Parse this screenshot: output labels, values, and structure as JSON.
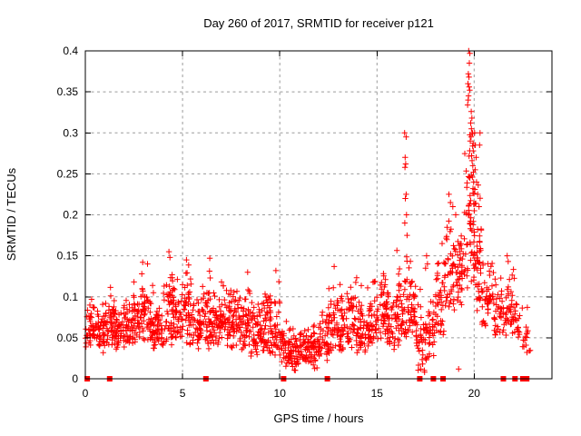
{
  "title": "Day 260 of 2017, SRMTID for receiver p121",
  "colors": {
    "marker": "#ff0000",
    "axis": "#000000",
    "grid": "#9b9b9b",
    "background": "#ffffff",
    "text": "#000000"
  },
  "chart_data": {
    "type": "scatter",
    "title": "Day 260 of 2017, SRMTID for receiver p121",
    "xlabel": "GPS time / hours",
    "ylabel": "SRMTID / TECUs",
    "xlim": [
      0,
      24
    ],
    "ylim": [
      0,
      0.4
    ],
    "xticks": [
      0,
      5,
      10,
      15,
      20
    ],
    "xtick_labels": [
      "0",
      "5",
      "10",
      "15",
      "20"
    ],
    "yticks": [
      0,
      0.05,
      0.1,
      0.15,
      0.2,
      0.25,
      0.3,
      0.35,
      0.4
    ],
    "ytick_labels": [
      "0",
      "0.05",
      "0.1",
      "0.15",
      "0.2",
      "0.25",
      "0.3",
      "0.35",
      "0.4"
    ],
    "grid": true,
    "legend": false,
    "marker": "plus",
    "series_name": "SRMTID",
    "seed": 20170260,
    "bands": [
      [
        0.0,
        0.5,
        42,
        0.035,
        0.1
      ],
      [
        0.5,
        1.0,
        45,
        0.03,
        0.105
      ],
      [
        1.0,
        1.5,
        45,
        0.04,
        0.12
      ],
      [
        1.5,
        2.0,
        45,
        0.035,
        0.095
      ],
      [
        2.0,
        2.5,
        45,
        0.04,
        0.11
      ],
      [
        2.5,
        3.0,
        45,
        0.04,
        0.135
      ],
      [
        3.0,
        3.5,
        45,
        0.04,
        0.14
      ],
      [
        3.5,
        4.0,
        45,
        0.035,
        0.105
      ],
      [
        4.0,
        4.5,
        45,
        0.04,
        0.15
      ],
      [
        4.5,
        5.0,
        45,
        0.04,
        0.125
      ],
      [
        5.0,
        5.5,
        45,
        0.035,
        0.145
      ],
      [
        5.5,
        6.0,
        45,
        0.03,
        0.11
      ],
      [
        6.0,
        6.5,
        45,
        0.035,
        0.145
      ],
      [
        6.5,
        7.0,
        45,
        0.035,
        0.11
      ],
      [
        7.0,
        7.5,
        45,
        0.04,
        0.125
      ],
      [
        7.5,
        8.0,
        45,
        0.035,
        0.12
      ],
      [
        8.0,
        8.5,
        45,
        0.03,
        0.125
      ],
      [
        8.5,
        9.0,
        45,
        0.025,
        0.1
      ],
      [
        9.0,
        9.5,
        45,
        0.03,
        0.115
      ],
      [
        9.5,
        10.0,
        45,
        0.02,
        0.13
      ],
      [
        10.0,
        10.5,
        42,
        0.015,
        0.08
      ],
      [
        10.5,
        11.0,
        42,
        0.01,
        0.07
      ],
      [
        11.0,
        11.5,
        42,
        0.015,
        0.075
      ],
      [
        11.5,
        12.0,
        42,
        0.01,
        0.08
      ],
      [
        12.0,
        12.5,
        42,
        0.02,
        0.09
      ],
      [
        12.5,
        13.0,
        42,
        0.03,
        0.125
      ],
      [
        13.0,
        13.5,
        42,
        0.03,
        0.12
      ],
      [
        13.5,
        14.0,
        42,
        0.03,
        0.13
      ],
      [
        14.0,
        14.5,
        42,
        0.03,
        0.12
      ],
      [
        14.5,
        15.0,
        42,
        0.035,
        0.13
      ],
      [
        15.0,
        15.5,
        42,
        0.04,
        0.14
      ],
      [
        15.5,
        16.0,
        42,
        0.035,
        0.12
      ],
      [
        16.0,
        16.5,
        46,
        0.04,
        0.16
      ],
      [
        16.5,
        17.0,
        46,
        0.04,
        0.17
      ],
      [
        17.0,
        17.5,
        36,
        0.005,
        0.12
      ],
      [
        17.5,
        18.0,
        36,
        0.02,
        0.12
      ],
      [
        18.0,
        18.5,
        42,
        0.05,
        0.155
      ],
      [
        18.5,
        19.0,
        42,
        0.08,
        0.21
      ],
      [
        19.0,
        19.5,
        42,
        0.09,
        0.2
      ],
      [
        19.5,
        20.0,
        55,
        0.1,
        0.32
      ],
      [
        20.0,
        20.4,
        48,
        0.08,
        0.28
      ],
      [
        20.4,
        21.0,
        42,
        0.06,
        0.15
      ],
      [
        21.0,
        21.5,
        36,
        0.05,
        0.13
      ],
      [
        21.5,
        22.1,
        40,
        0.05,
        0.14
      ],
      [
        22.1,
        22.4,
        14,
        0.04,
        0.1
      ],
      [
        22.4,
        22.9,
        16,
        0.02,
        0.095
      ]
    ],
    "outliers": [
      [
        2.95,
        0.142
      ],
      [
        3.2,
        0.14
      ],
      [
        4.3,
        0.155
      ],
      [
        4.35,
        0.148
      ],
      [
        5.2,
        0.145
      ],
      [
        6.4,
        0.147
      ],
      [
        8.35,
        0.13
      ],
      [
        9.8,
        0.132
      ],
      [
        12.8,
        0.137
      ],
      [
        16.42,
        0.3
      ],
      [
        16.5,
        0.295
      ],
      [
        16.45,
        0.27
      ],
      [
        16.48,
        0.262
      ],
      [
        16.44,
        0.258
      ],
      [
        16.5,
        0.225
      ],
      [
        16.46,
        0.22
      ],
      [
        16.52,
        0.2
      ],
      [
        16.43,
        0.19
      ],
      [
        16.55,
        0.175
      ],
      [
        17.25,
        0.012
      ],
      [
        17.35,
        0.018
      ],
      [
        17.45,
        0.008
      ],
      [
        19.2,
        0.012
      ],
      [
        17.55,
        0.15
      ],
      [
        17.6,
        0.14
      ],
      [
        17.5,
        0.135
      ],
      [
        18.35,
        0.165
      ],
      [
        18.7,
        0.225
      ],
      [
        18.78,
        0.215
      ],
      [
        18.9,
        0.21
      ],
      [
        19.05,
        0.2
      ],
      [
        19.72,
        0.4
      ],
      [
        19.78,
        0.397
      ],
      [
        19.75,
        0.385
      ],
      [
        19.7,
        0.372
      ],
      [
        19.73,
        0.368
      ],
      [
        19.68,
        0.36
      ],
      [
        19.74,
        0.356
      ],
      [
        19.77,
        0.352
      ],
      [
        19.71,
        0.345
      ],
      [
        19.69,
        0.34
      ],
      [
        19.66,
        0.334
      ],
      [
        19.85,
        0.326
      ],
      [
        19.88,
        0.318
      ],
      [
        19.82,
        0.312
      ],
      [
        19.86,
        0.305
      ],
      [
        19.9,
        0.3
      ],
      [
        19.84,
        0.295
      ],
      [
        19.8,
        0.29
      ],
      [
        19.92,
        0.284
      ],
      [
        19.95,
        0.278
      ],
      [
        19.87,
        0.272
      ],
      [
        19.89,
        0.266
      ],
      [
        19.93,
        0.26
      ],
      [
        19.96,
        0.252
      ],
      [
        19.91,
        0.246
      ],
      [
        19.97,
        0.24
      ],
      [
        19.94,
        0.232
      ],
      [
        19.99,
        0.226
      ],
      [
        20.02,
        0.3
      ],
      [
        20.06,
        0.285
      ],
      [
        20.1,
        0.27
      ],
      [
        20.05,
        0.255
      ],
      [
        20.12,
        0.24
      ],
      [
        20.18,
        0.225
      ],
      [
        20.25,
        0.21
      ],
      [
        20.3,
        0.3
      ],
      [
        20.28,
        0.285
      ],
      [
        21.7,
        0.15
      ],
      [
        21.75,
        0.143
      ]
    ],
    "zero_markers": [
      0.1,
      1.25,
      6.2,
      10.2,
      12.45,
      17.2,
      17.9,
      18.4,
      21.5,
      22.1,
      22.5,
      22.7
    ]
  }
}
